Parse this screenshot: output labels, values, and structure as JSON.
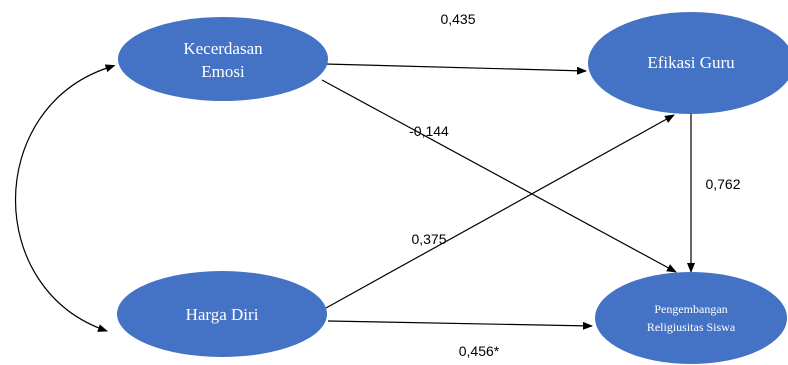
{
  "diagram": {
    "node_color": "#4472C4",
    "nodes": {
      "kecerdasan_emosi": {
        "line1": "Kecerdasan",
        "line2": "Emosi"
      },
      "efikasi_guru": {
        "label": "Efikasi Guru"
      },
      "harga_diri": {
        "label": "Harga Diri"
      },
      "pengembangan": {
        "line1": "Pengembangan",
        "line2": "Religiusitas Siswa"
      }
    },
    "edges": {
      "emosi_to_efikasi": "0,435",
      "emosi_to_pengembangan": "-0,144",
      "efikasi_to_pengembangan": "0,762",
      "harga_to_efikasi": "0,375",
      "harga_to_pengembangan": "0,456*"
    }
  }
}
